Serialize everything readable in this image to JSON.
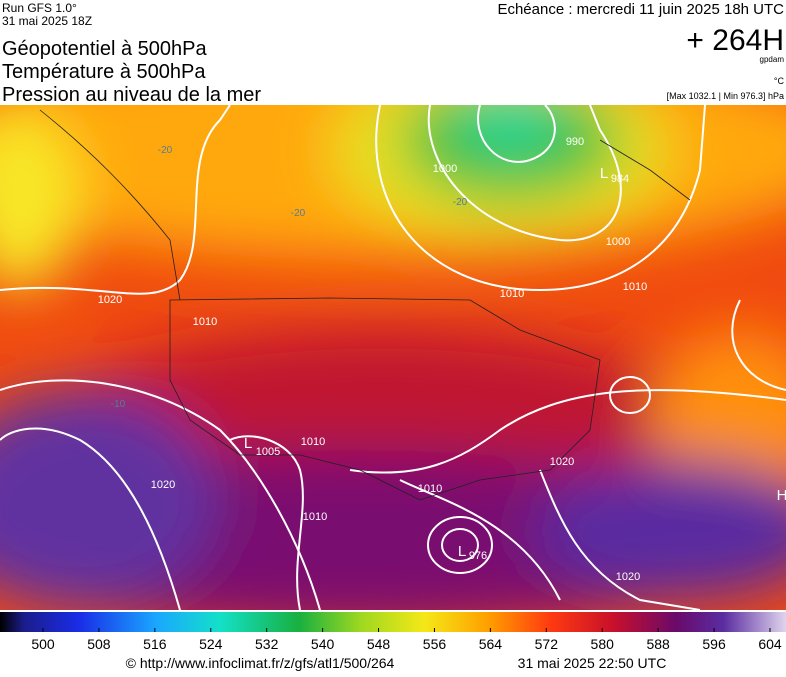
{
  "header": {
    "run": "Run GFS 1.0°",
    "run_date": "31 mai 2025 18Z",
    "title_lines": [
      "Géopotentiel à 500hPa",
      "Température à 500hPa",
      "Pression au niveau de la mer"
    ],
    "echeance": "Echéance : mercredi 11 juin 2025 18h UTC",
    "lead": "+ 264H",
    "unit_gpdam": "gpdam",
    "unit_temp": "°C",
    "pressure_range": "[Max 1032.1 | Min 976.3] hPa"
  },
  "map_labels": [
    "1000",
    "990",
    "984",
    "1010",
    "1000",
    "1010",
    "1020",
    "1010",
    "1005",
    "1010",
    "1020",
    "1010",
    "1010",
    "976",
    "1020",
    "1020",
    "-20",
    "-20",
    "-20",
    "-10",
    "L",
    "L",
    "L",
    "H"
  ],
  "colorbar": {
    "ticks": [
      500,
      508,
      516,
      524,
      532,
      540,
      548,
      556,
      564,
      572,
      580,
      588,
      596,
      604
    ]
  },
  "footer": {
    "url": "© http://www.infoclimat.fr/z/gfs/atl1/500/264",
    "timestamp": "31 mai 2025 22:50 UTC"
  }
}
